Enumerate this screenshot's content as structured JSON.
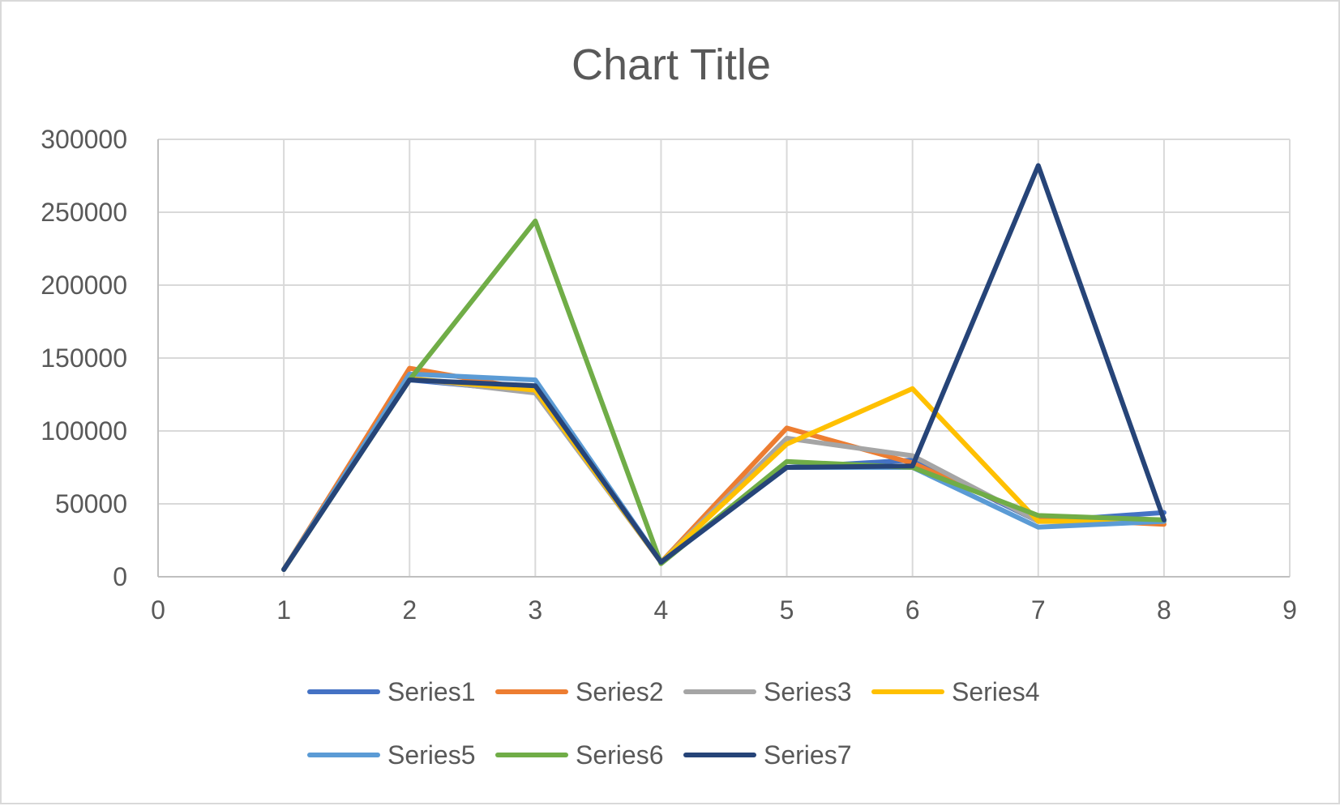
{
  "chart_data": {
    "type": "line",
    "title": "Chart Title",
    "xlabel": "",
    "ylabel": "",
    "xlim": [
      0,
      9
    ],
    "ylim": [
      0,
      300000
    ],
    "x_ticks": [
      "0",
      "1",
      "2",
      "3",
      "4",
      "5",
      "6",
      "7",
      "8",
      "9"
    ],
    "y_ticks": [
      "0",
      "50000",
      "100000",
      "150000",
      "200000",
      "250000",
      "300000"
    ],
    "grid": true,
    "legend_position": "bottom",
    "x": [
      1,
      2,
      3,
      4,
      5,
      6,
      7,
      8
    ],
    "series": [
      {
        "name": "Series1",
        "color": "#4472C4",
        "values": [
          5000,
          135000,
          127000,
          10000,
          75000,
          80000,
          38000,
          44000
        ]
      },
      {
        "name": "Series2",
        "color": "#ED7D31",
        "values": [
          5000,
          143000,
          128000,
          10000,
          102000,
          78000,
          40000,
          36000
        ]
      },
      {
        "name": "Series3",
        "color": "#A5A5A5",
        "values": [
          5000,
          136000,
          126000,
          10000,
          95000,
          83000,
          38000,
          38000
        ]
      },
      {
        "name": "Series4",
        "color": "#FFC000",
        "values": [
          5000,
          136000,
          128000,
          10000,
          91000,
          129000,
          38000,
          38000
        ]
      },
      {
        "name": "Series5",
        "color": "#5B9BD5",
        "values": [
          5000,
          139000,
          135000,
          10000,
          75000,
          75000,
          34000,
          38000
        ]
      },
      {
        "name": "Series6",
        "color": "#70AD47",
        "values": [
          5000,
          135000,
          244000,
          9000,
          79000,
          75000,
          42000,
          39000
        ]
      },
      {
        "name": "Series7",
        "color": "#264478",
        "values": [
          5000,
          135000,
          131000,
          10000,
          75000,
          76000,
          282000,
          39000
        ]
      }
    ]
  }
}
